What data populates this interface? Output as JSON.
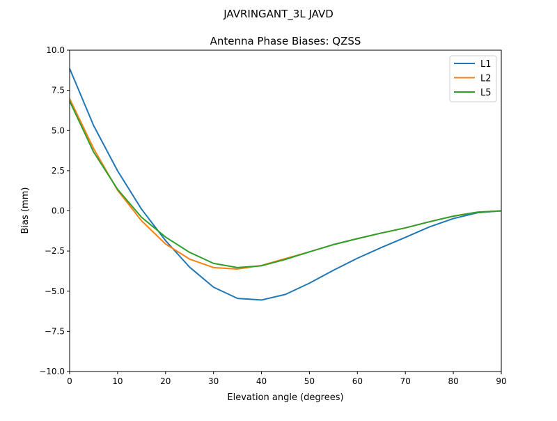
{
  "chart_data": {
    "type": "line",
    "suptitle": "JAVRINGANT_3L   JAVD",
    "title": "Antenna Phase Biases: QZSS",
    "xlabel": "Elevation angle (degrees)",
    "ylabel": "Bias (mm)",
    "xlim": [
      0,
      90
    ],
    "ylim": [
      -10,
      10
    ],
    "xticks": [
      0,
      10,
      20,
      30,
      40,
      50,
      60,
      70,
      80,
      90
    ],
    "xtick_labels": [
      "0",
      "10",
      "20",
      "30",
      "40",
      "50",
      "60",
      "70",
      "80",
      "90"
    ],
    "yticks": [
      10,
      7.5,
      5,
      2.5,
      0,
      -2.5,
      -5,
      -7.5,
      -10
    ],
    "ytick_labels": [
      "10.0",
      "7.5",
      "5.0",
      "2.5",
      "0.0",
      "−2.5",
      "−5.0",
      "−7.5",
      "−10.0"
    ],
    "grid": false,
    "legend_position": "top-right",
    "x": [
      0,
      5,
      10,
      15,
      20,
      25,
      30,
      35,
      40,
      45,
      50,
      55,
      60,
      65,
      70,
      75,
      80,
      85,
      90
    ],
    "series": [
      {
        "name": "L1",
        "color": "#1f77b4",
        "values": [
          8.86,
          5.31,
          2.49,
          0.1,
          -1.85,
          -3.5,
          -4.75,
          -5.45,
          -5.55,
          -5.2,
          -4.5,
          -3.7,
          -2.95,
          -2.28,
          -1.65,
          -1.0,
          -0.48,
          -0.12,
          0.0
        ]
      },
      {
        "name": "L2",
        "color": "#ff7f0e",
        "values": [
          6.98,
          3.88,
          1.28,
          -0.62,
          -2.06,
          -3.0,
          -3.53,
          -3.62,
          -3.4,
          -2.97,
          -2.55,
          -2.1,
          -1.73,
          -1.38,
          -1.06,
          -0.68,
          -0.33,
          -0.08,
          0.0
        ]
      },
      {
        "name": "L5",
        "color": "#2ca02c",
        "values": [
          6.83,
          3.66,
          1.34,
          -0.4,
          -1.63,
          -2.58,
          -3.27,
          -3.53,
          -3.42,
          -3.02,
          -2.55,
          -2.1,
          -1.73,
          -1.38,
          -1.06,
          -0.68,
          -0.33,
          -0.08,
          0.0
        ]
      }
    ]
  }
}
